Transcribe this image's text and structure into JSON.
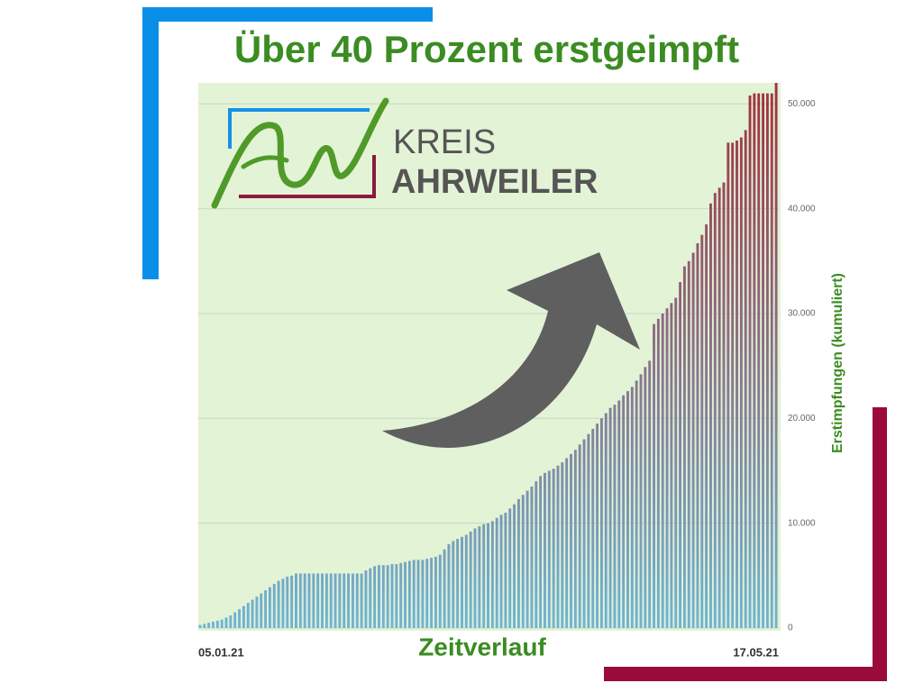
{
  "logo": {
    "line1": "KREIS",
    "line2": "AHRWEILER"
  },
  "chart_data": {
    "type": "bar",
    "title": "Über 40 Prozent erstgeimpft",
    "x_label": "Zeitverlauf",
    "y_label": "Erstimpfungen (kumuliert)",
    "categories": [
      "05.01.21",
      null,
      null,
      null,
      null,
      null,
      null,
      null,
      null,
      null,
      null,
      null,
      null,
      null,
      null,
      null,
      null,
      null,
      null,
      null,
      null,
      null,
      null,
      null,
      null,
      null,
      null,
      null,
      null,
      null,
      null,
      null,
      null,
      null,
      null,
      null,
      null,
      null,
      null,
      null,
      null,
      null,
      null,
      null,
      null,
      null,
      null,
      null,
      null,
      null,
      null,
      null,
      null,
      null,
      null,
      null,
      null,
      null,
      null,
      null,
      null,
      null,
      null,
      null,
      null,
      null,
      null,
      null,
      null,
      null,
      null,
      null,
      null,
      null,
      null,
      null,
      null,
      null,
      null,
      null,
      null,
      null,
      null,
      null,
      null,
      null,
      null,
      null,
      null,
      null,
      null,
      null,
      null,
      null,
      null,
      null,
      null,
      null,
      null,
      null,
      null,
      null,
      null,
      null,
      null,
      null,
      null,
      null,
      null,
      null,
      null,
      null,
      null,
      null,
      null,
      null,
      null,
      null,
      null,
      null,
      null,
      null,
      null,
      null,
      null,
      null,
      null,
      null,
      null,
      null,
      null,
      null,
      "17.05.21"
    ],
    "values": [
      300,
      400,
      500,
      600,
      700,
      800,
      1000,
      1200,
      1500,
      1800,
      2100,
      2400,
      2700,
      3000,
      3300,
      3600,
      3900,
      4200,
      4500,
      4700,
      4900,
      5000,
      5200,
      5200,
      5200,
      5200,
      5200,
      5200,
      5200,
      5200,
      5200,
      5200,
      5200,
      5200,
      5200,
      5200,
      5200,
      5200,
      5500,
      5700,
      5900,
      6000,
      6000,
      6000,
      6100,
      6100,
      6200,
      6300,
      6400,
      6500,
      6500,
      6500,
      6600,
      6700,
      6800,
      7000,
      7500,
      8000,
      8300,
      8500,
      8700,
      8900,
      9200,
      9500,
      9700,
      9900,
      10000,
      10200,
      10500,
      10800,
      11000,
      11400,
      11800,
      12300,
      12700,
      13100,
      13500,
      14000,
      14500,
      14800,
      15000,
      15200,
      15500,
      15800,
      16200,
      16600,
      17000,
      17500,
      18000,
      18500,
      19000,
      19500,
      20000,
      20500,
      21000,
      21300,
      21700,
      22200,
      22600,
      23000,
      23600,
      24200,
      24900,
      25500,
      29000,
      29500,
      30000,
      30500,
      31000,
      31500,
      33000,
      34500,
      35000,
      35800,
      36700,
      37500,
      38500,
      40500,
      41500,
      42000,
      42500,
      46300,
      46300,
      46500,
      46800,
      47500,
      50800,
      51000,
      51000,
      51000,
      51000,
      51000,
      52000
    ],
    "ylim": [
      0,
      52000
    ],
    "yticks": [
      0,
      {
        "value": 10000,
        "label": "10.000"
      },
      {
        "value": 20000,
        "label": "20.000"
      },
      {
        "value": 30000,
        "label": "30.000"
      },
      {
        "value": 40000,
        "label": "40.000"
      },
      {
        "value": 50000,
        "label": "50.000"
      }
    ],
    "grid": true,
    "bar_top_color": "#a3303c",
    "bar_bottom_color": "#6fb4d4",
    "plot_background": "#e3f3d6"
  }
}
